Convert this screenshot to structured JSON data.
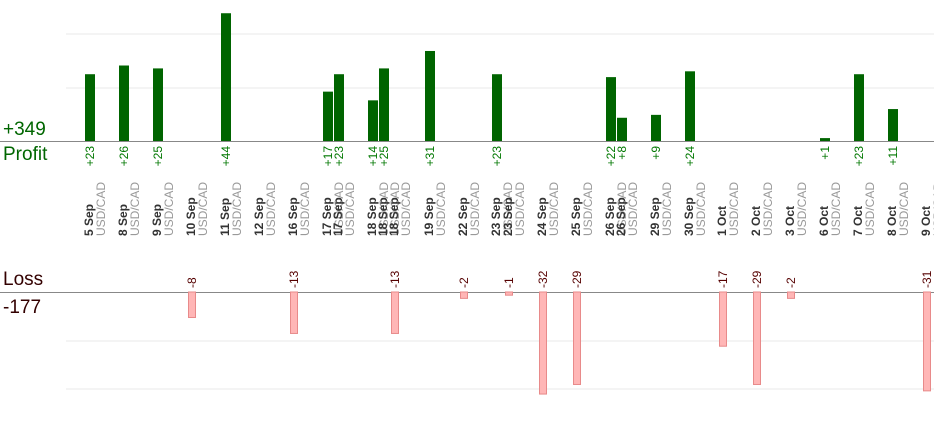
{
  "summary": {
    "profit_total": "+349",
    "profit_label": "Profit",
    "loss_label": "Loss",
    "loss_total": "-177"
  },
  "colors": {
    "profit_bar": "#006400",
    "profit_text": "#007700",
    "loss_bar_fill": "#ffb6b6",
    "loss_bar_stroke": "#e88a8a",
    "loss_text": "#550000",
    "axis": "#888888",
    "grid": "#e8e8e8"
  },
  "chart_data": {
    "type": "bar",
    "symbol": "USD/CAD",
    "profit_ylim": [
      0,
      52
    ],
    "loss_ylim": [
      0,
      37
    ],
    "trades": [
      {
        "date": "5 Sep",
        "value": 23
      },
      {
        "date": "8 Sep",
        "value": 26
      },
      {
        "date": "9 Sep",
        "value": 25
      },
      {
        "date": "10 Sep",
        "value": -8
      },
      {
        "date": "11 Sep",
        "value": 44
      },
      {
        "date": "12 Sep",
        "value": null
      },
      {
        "date": "16 Sep",
        "value": -13
      },
      {
        "date": "17 Sep",
        "value": 17
      },
      {
        "date": "17 Sep",
        "value": 23
      },
      {
        "date": "18 Sep",
        "value": 14
      },
      {
        "date": "18 Sep",
        "value": 25
      },
      {
        "date": "18 Sep",
        "value": -13
      },
      {
        "date": "19 Sep",
        "value": 31
      },
      {
        "date": "22 Sep",
        "value": -2
      },
      {
        "date": "23 Sep",
        "value": 23
      },
      {
        "date": "23 Sep",
        "value": -1
      },
      {
        "date": "24 Sep",
        "value": -32
      },
      {
        "date": "25 Sep",
        "value": -29
      },
      {
        "date": "26 Sep",
        "value": 22
      },
      {
        "date": "26 Sep",
        "value": 8
      },
      {
        "date": "29 Sep",
        "value": 9
      },
      {
        "date": "30 Sep",
        "value": 24
      },
      {
        "date": "1 Oct",
        "value": -17
      },
      {
        "date": "2 Oct",
        "value": -29
      },
      {
        "date": "3 Oct",
        "value": -2
      },
      {
        "date": "6 Oct",
        "value": 1
      },
      {
        "date": "7 Oct",
        "value": 23
      },
      {
        "date": "8 Oct",
        "value": 11
      },
      {
        "date": "9 Oct",
        "value": -31
      }
    ]
  }
}
